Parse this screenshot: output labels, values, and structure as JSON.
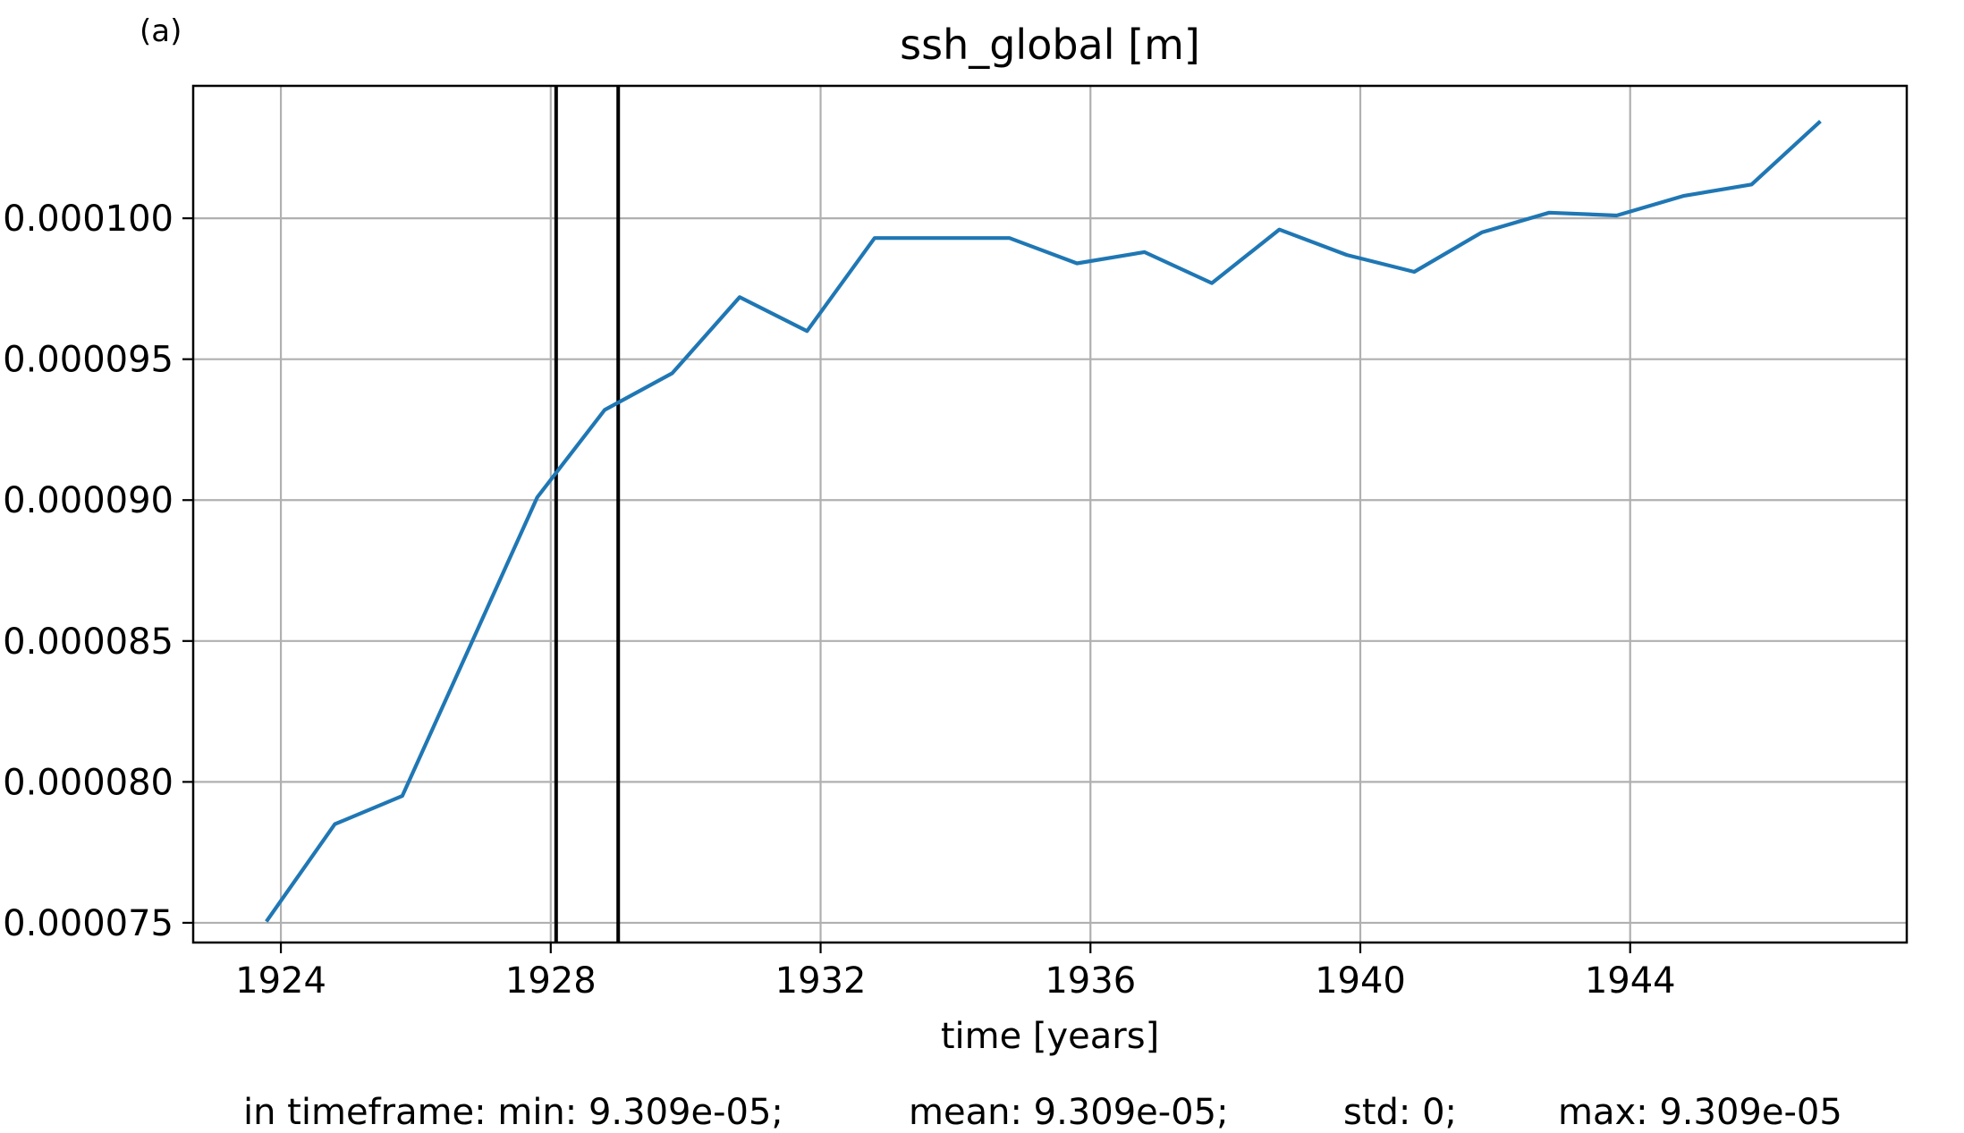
{
  "panel_label": "(a)",
  "chart_data": {
    "type": "line",
    "title": "ssh_global [m]",
    "xlabel": "time [years]",
    "ylabel": "",
    "xlim": [
      1922.7,
      1948.1
    ],
    "ylim": [
      7.43e-05,
      0.0001047
    ],
    "x_ticks": [
      1924,
      1928,
      1932,
      1936,
      1940,
      1944
    ],
    "y_ticks": [
      7.5e-05,
      8e-05,
      8.5e-05,
      9e-05,
      9.5e-05,
      0.0001
    ],
    "x_tick_labels": [
      "1924",
      "1928",
      "1932",
      "1936",
      "1940",
      "1944"
    ],
    "y_tick_labels": [
      "0.000075",
      "0.000080",
      "0.000085",
      "0.000090",
      "0.000095",
      "0.000100"
    ],
    "grid": true,
    "vertical_lines": [
      1928.08,
      1929.0
    ],
    "series": [
      {
        "color": "#1f77b4",
        "x": [
          1923.8,
          1924.8,
          1925.8,
          1926.8,
          1927.8,
          1928.8,
          1929.8,
          1930.8,
          1931.8,
          1932.8,
          1933.8,
          1934.8,
          1935.8,
          1936.8,
          1937.8,
          1938.8,
          1939.8,
          1940.8,
          1941.8,
          1942.8,
          1943.8,
          1944.8,
          1945.8,
          1946.8
        ],
        "y": [
          7.51e-05,
          7.85e-05,
          7.95e-05,
          8.48e-05,
          9.01e-05,
          9.32e-05,
          9.45e-05,
          9.72e-05,
          9.6e-05,
          9.93e-05,
          9.93e-05,
          9.93e-05,
          9.84e-05,
          9.88e-05,
          9.77e-05,
          9.96e-05,
          9.87e-05,
          9.81e-05,
          9.95e-05,
          0.0001002,
          0.0001001,
          0.0001008,
          0.0001012,
          0.0001034
        ]
      }
    ]
  },
  "stats": {
    "min": "in timeframe: min: 9.309e-05;",
    "mean": "mean: 9.309e-05;",
    "std": "std: 0;",
    "max": "max: 9.309e-05"
  },
  "colors": {
    "line": "#1f77b4",
    "grid": "#b0b0b0",
    "axes": "#000000"
  }
}
